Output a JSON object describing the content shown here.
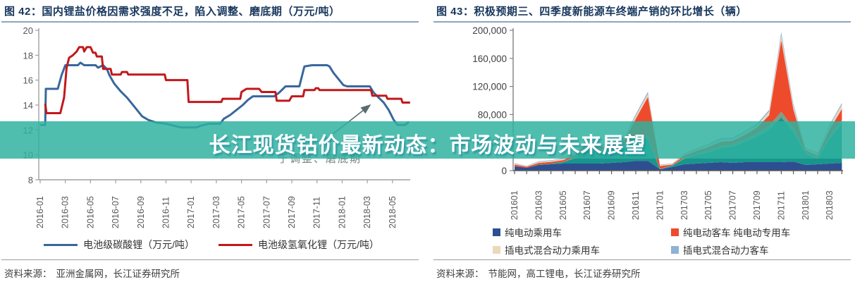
{
  "overlay": {
    "headline": "长江现货钴价最新动态：市场波动与未来展望",
    "band_color": "rgba(47,178,160,0.84)"
  },
  "figures": [
    {
      "title": "图 42：国内锂盐价格因需求强度不足，陷入调整、磨底期（万元/吨）",
      "source_label": "资料来源：",
      "source_text": "亚洲金属网，长江证券研究所"
    },
    {
      "title": "图 43：积极预期三、四季度新能源车终端产销的环比增长（辆）",
      "source_label": "资料来源：",
      "source_text": "节能网，高工锂电，长江证券研究所"
    }
  ],
  "chart_data": [
    {
      "type": "line",
      "title": "图 42：国内锂盐价格因需求强度不足，陷入调整、磨底期（万元/吨）",
      "ylabel": "万元/吨",
      "ylim": [
        8,
        20
      ],
      "y_ticks": [
        20,
        18,
        16,
        14,
        12,
        10,
        8
      ],
      "x_tick_labels": [
        "2016-01",
        "2016-03",
        "2016-05",
        "2016-07",
        "2016-09",
        "2016-11",
        "2017-01",
        "2017-03",
        "2017-05",
        "2017-07",
        "2017-09",
        "2017-11",
        "2018-01",
        "2018-03",
        "2018-05"
      ],
      "grid": false,
      "legend_position": "bottom",
      "annotation": {
        "text": "于调整、磨底期"
      },
      "legend": [
        {
          "label": "电池级碳酸锂（万元/吨）",
          "color": "#38679e",
          "swatch": "line"
        },
        {
          "label": "电池级氢氧化锂（万元/吨）",
          "color": "#c2181c",
          "swatch": "line"
        }
      ],
      "series": [
        {
          "name": "电池级碳酸锂（万元/吨）",
          "color": "#38679e",
          "points": [
            [
              0,
              12.4
            ],
            [
              0.4,
              12.4
            ],
            [
              0.45,
              15.3
            ],
            [
              1.4,
              15.3
            ],
            [
              1.7,
              16.4
            ],
            [
              2.0,
              17.2
            ],
            [
              3.0,
              17.2
            ],
            [
              3.2,
              17.4
            ],
            [
              3.5,
              17.2
            ],
            [
              4.4,
              17.2
            ],
            [
              4.6,
              17.0
            ],
            [
              5.0,
              17.2
            ],
            [
              5.3,
              16.9
            ],
            [
              5.5,
              16.4
            ],
            [
              5.9,
              15.7
            ],
            [
              6.4,
              15.1
            ],
            [
              6.9,
              14.6
            ],
            [
              7.3,
              14.1
            ],
            [
              7.7,
              13.6
            ],
            [
              8.1,
              13.1
            ],
            [
              8.6,
              12.8
            ],
            [
              9.2,
              12.6
            ],
            [
              10.0,
              12.5
            ],
            [
              10.6,
              12.35
            ],
            [
              11.2,
              12.2
            ],
            [
              12.4,
              12.2
            ],
            [
              12.8,
              12.35
            ],
            [
              13.4,
              12.5
            ],
            [
              14.3,
              12.5
            ],
            [
              14.6,
              12.9
            ],
            [
              15.1,
              13.2
            ],
            [
              15.6,
              13.6
            ],
            [
              16.1,
              14.0
            ],
            [
              16.5,
              14.4
            ],
            [
              16.9,
              14.7
            ],
            [
              18.6,
              14.7
            ],
            [
              19.0,
              15.0
            ],
            [
              19.5,
              15.5
            ],
            [
              20.6,
              15.5
            ],
            [
              20.8,
              16.3
            ],
            [
              21.0,
              17.1
            ],
            [
              21.6,
              17.2
            ],
            [
              22.8,
              17.2
            ],
            [
              23.0,
              17.1
            ],
            [
              23.3,
              16.6
            ],
            [
              23.7,
              16.1
            ],
            [
              24.1,
              15.6
            ],
            [
              24.4,
              15.5
            ],
            [
              26.2,
              15.5
            ],
            [
              26.5,
              15.0
            ],
            [
              26.9,
              14.6
            ],
            [
              27.3,
              14.2
            ],
            [
              27.7,
              13.6
            ],
            [
              28.1,
              12.8
            ],
            [
              28.4,
              12.4
            ],
            [
              29.0,
              12.4
            ],
            [
              29.3,
              12.65
            ]
          ]
        },
        {
          "name": "电池级氢氧化锂（万元/吨）",
          "color": "#c2181c",
          "points": [
            [
              0.4,
              14.1
            ],
            [
              0.5,
              13.35
            ],
            [
              1.6,
              13.35
            ],
            [
              1.9,
              14.6
            ],
            [
              2.1,
              17.0
            ],
            [
              2.3,
              17.8
            ],
            [
              2.6,
              18.0
            ],
            [
              2.9,
              18.3
            ],
            [
              3.1,
              18.65
            ],
            [
              3.4,
              18.65
            ],
            [
              3.5,
              18.3
            ],
            [
              3.7,
              18.65
            ],
            [
              4.0,
              18.65
            ],
            [
              4.2,
              18.2
            ],
            [
              4.4,
              18.2
            ],
            [
              4.5,
              17.9
            ],
            [
              4.9,
              17.9
            ],
            [
              5.0,
              16.9
            ],
            [
              5.6,
              16.9
            ],
            [
              5.7,
              16.45
            ],
            [
              6.4,
              16.45
            ],
            [
              6.5,
              16.65
            ],
            [
              6.9,
              16.65
            ],
            [
              7.0,
              16.45
            ],
            [
              9.9,
              16.45
            ],
            [
              10.0,
              16.0
            ],
            [
              11.7,
              16.0
            ],
            [
              11.8,
              14.25
            ],
            [
              14.4,
              14.25
            ],
            [
              14.5,
              14.5
            ],
            [
              15.9,
              14.5
            ],
            [
              16.0,
              15.05
            ],
            [
              16.4,
              15.3
            ],
            [
              17.4,
              15.3
            ],
            [
              17.6,
              15.05
            ],
            [
              18.7,
              15.05
            ],
            [
              18.8,
              14.35
            ],
            [
              19.8,
              14.35
            ],
            [
              20.0,
              14.7
            ],
            [
              20.9,
              14.7
            ],
            [
              21.0,
              15.2
            ],
            [
              21.8,
              15.2
            ],
            [
              21.9,
              15.35
            ],
            [
              22.1,
              15.35
            ],
            [
              22.2,
              15.2
            ],
            [
              26.3,
              15.2
            ],
            [
              26.4,
              14.75
            ],
            [
              27.5,
              14.75
            ],
            [
              27.6,
              14.5
            ],
            [
              28.7,
              14.5
            ],
            [
              28.8,
              14.2
            ],
            [
              29.4,
              14.2
            ]
          ]
        }
      ]
    },
    {
      "type": "area",
      "stacked": true,
      "title": "图 43：积极预期三、四季度新能源车终端产销的环比增长（辆）",
      "ylabel": "辆",
      "ylim": [
        0,
        200000
      ],
      "y_ticks": [
        {
          "value": 200000,
          "label": "200,000"
        },
        {
          "value": 160000,
          "label": "160,000"
        },
        {
          "value": 120000,
          "label": "120,000"
        },
        {
          "value": 80000,
          "label": "80,000"
        },
        {
          "value": 40000,
          "label": "40,000"
        },
        {
          "value": 0,
          "label": "0"
        }
      ],
      "x_tick_labels": [
        "201601",
        "201603",
        "201605",
        "201607",
        "201609",
        "201611",
        "201701",
        "201703",
        "201705",
        "201707",
        "201709",
        "201711",
        "201801",
        "201803"
      ],
      "months_shown": 28,
      "grid": false,
      "legend_position": "bottom",
      "legend": [
        {
          "label": "纯电动乘用车",
          "color": "#2e4f8f",
          "swatch": "square"
        },
        {
          "label": "纯电动客车 纯电动专用车",
          "color": "#ee4b2c",
          "swatch": "square"
        },
        {
          "label": "插电式混合动力乘用车",
          "color": "#ecd8bd",
          "swatch": "square"
        },
        {
          "label": "插电式混合动力客车",
          "color": "#8fb2d6",
          "swatch": "square"
        }
      ],
      "series": [
        {
          "name": "纯电动乘用车",
          "color": "#2e4f8f",
          "values": [
            6000,
            4000,
            8000,
            9000,
            10000,
            10000,
            10000,
            10000,
            11000,
            12000,
            14000,
            14000,
            2000,
            5000,
            9000,
            10000,
            11000,
            12000,
            11000,
            12000,
            12000,
            12000,
            12000,
            13000,
            8000,
            9000,
            10000,
            11000
          ]
        },
        {
          "name": "纯电动专用车",
          "color": "#18968d",
          "values": [
            0,
            0,
            500,
            1000,
            2000,
            8000,
            24000,
            17000,
            19000,
            21000,
            30000,
            32000,
            0,
            2000,
            8000,
            12000,
            15000,
            20000,
            23000,
            29000,
            36000,
            46000,
            64000,
            42000,
            16000,
            8000,
            36000,
            56000
          ]
        },
        {
          "name": "",
          "color": "#7d9f8a",
          "values": [
            0,
            0,
            0,
            0,
            500,
            1500,
            3000,
            2500,
            3000,
            3500,
            4000,
            3000,
            500,
            500,
            1500,
            2000,
            2500,
            3000,
            3500,
            4000,
            5000,
            6000,
            8000,
            6000,
            2500,
            2000,
            4000,
            5000
          ]
        },
        {
          "name": "纯电动客车",
          "color": "#ee4b2c",
          "values": [
            2500,
            1500,
            2500,
            2500,
            2500,
            3000,
            4000,
            3000,
            4000,
            5000,
            26000,
            56000,
            4000,
            1000,
            3000,
            4000,
            5000,
            6000,
            5000,
            6000,
            8000,
            15000,
            102000,
            26000,
            2500,
            2500,
            9000,
            16000
          ]
        },
        {
          "name": "插电式混合动力乘用车",
          "color": "#ecd8bd",
          "values": [
            1200,
            800,
            1500,
            1500,
            1500,
            2000,
            2500,
            2000,
            2500,
            3000,
            4000,
            4500,
            1500,
            1000,
            2000,
            2500,
            3000,
            3500,
            3000,
            3500,
            4000,
            5000,
            7000,
            5000,
            2500,
            3000,
            5000,
            6000
          ]
        },
        {
          "name": "插电式混合动力客车",
          "color": "#8fb2d6",
          "values": [
            800,
            500,
            800,
            800,
            800,
            1000,
            1200,
            1000,
            1200,
            1500,
            2500,
            3000,
            700,
            500,
            1000,
            1200,
            1500,
            1800,
            1500,
            1800,
            2000,
            2500,
            4500,
            3000,
            1000,
            1200,
            2000,
            2500
          ]
        }
      ]
    }
  ]
}
